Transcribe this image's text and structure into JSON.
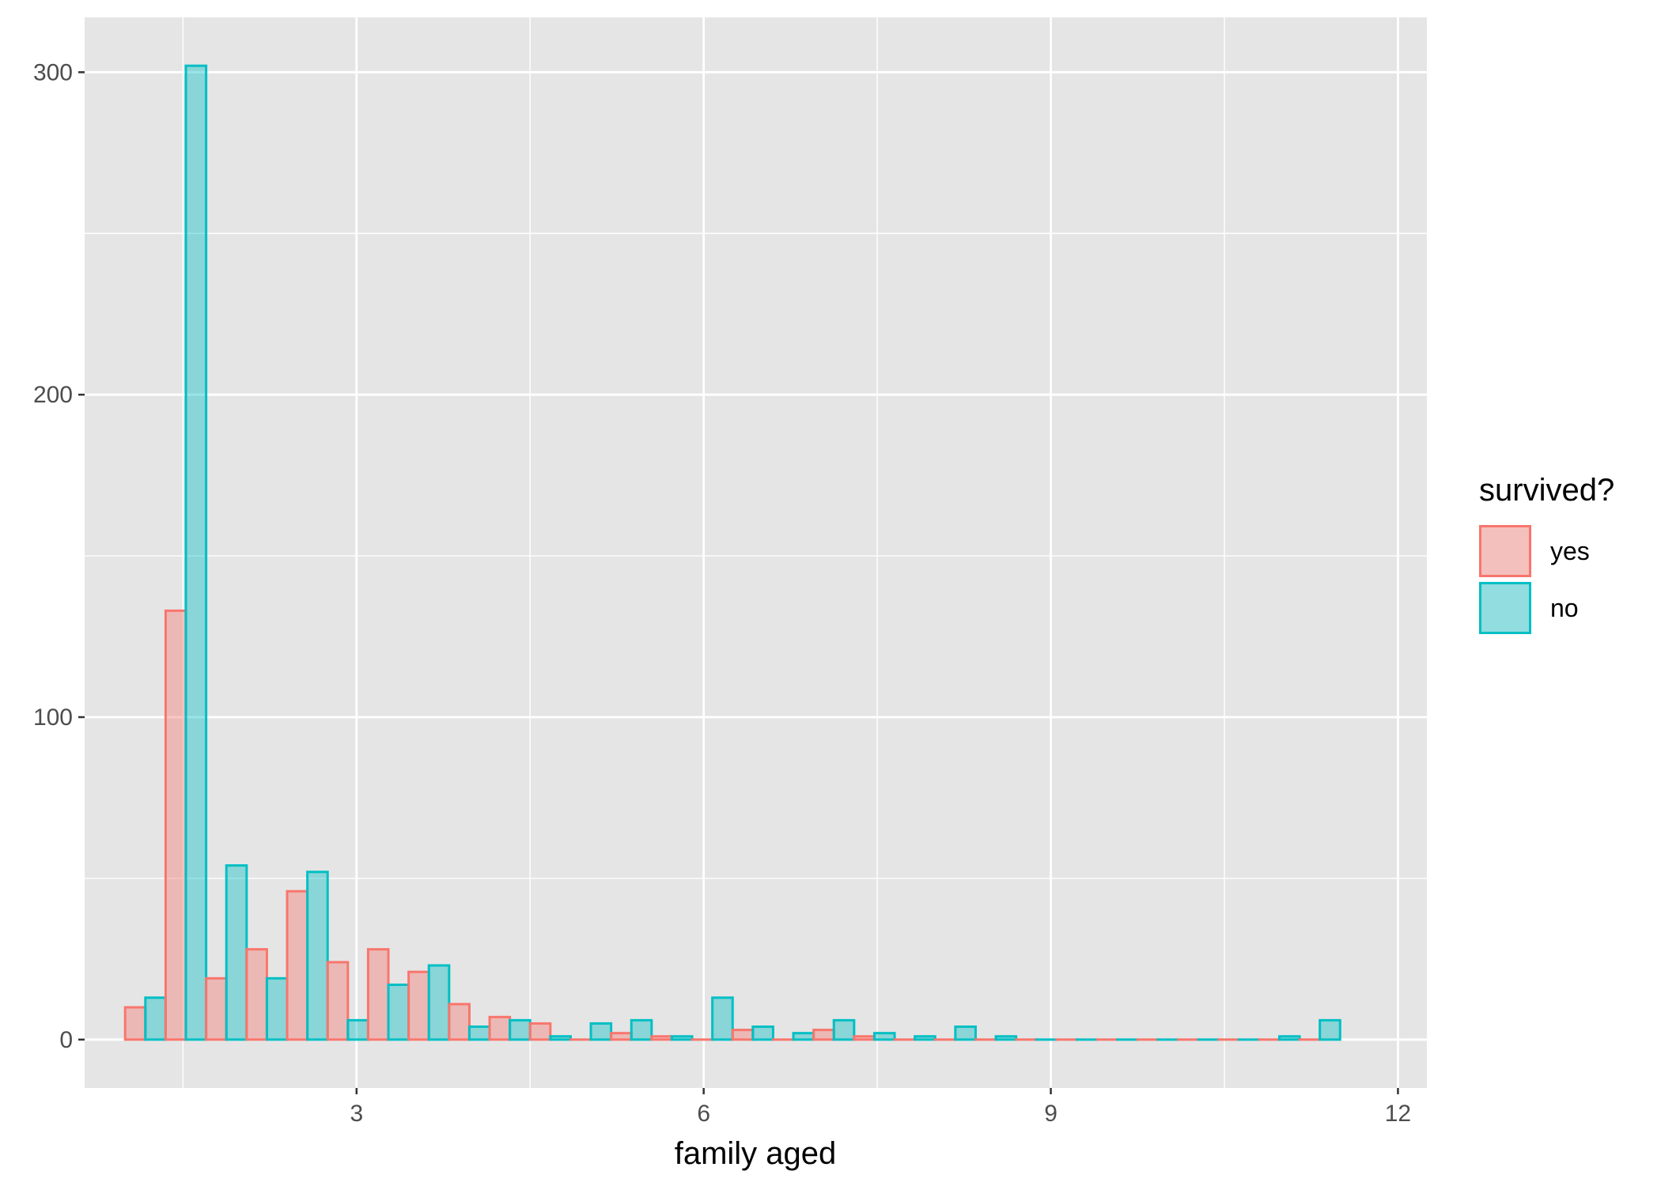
{
  "chart_data": {
    "type": "bar",
    "subtype": "dodged-histogram",
    "xlabel": "family aged",
    "ylabel": "",
    "xlim": [
      0.65,
      12.25
    ],
    "ylim": [
      -15,
      317
    ],
    "x_ticks": [
      3,
      6,
      9,
      12
    ],
    "y_ticks": [
      0,
      100,
      200,
      300
    ],
    "grid": true,
    "legend": {
      "title": "survived?",
      "position": "right"
    },
    "bin_width": 0.35,
    "x": [
      1.175,
      1.525,
      1.875,
      2.225,
      2.575,
      2.925,
      3.275,
      3.625,
      3.975,
      4.325,
      4.675,
      5.025,
      5.375,
      5.725,
      6.075,
      6.425,
      6.775,
      7.125,
      7.475,
      7.825,
      8.175,
      8.525,
      8.875,
      9.225,
      9.575,
      9.925,
      10.275,
      10.625,
      10.975,
      11.325
    ],
    "series": [
      {
        "name": "yes",
        "color": "#F8766D",
        "values": [
          10,
          133,
          19,
          28,
          46,
          24,
          28,
          21,
          11,
          7,
          5,
          0,
          2,
          1,
          0,
          3,
          0,
          3,
          1,
          0,
          0,
          0,
          0,
          0,
          0,
          0,
          0,
          0,
          0,
          0
        ]
      },
      {
        "name": "no",
        "color": "#00BFC4",
        "values": [
          13,
          302,
          54,
          19,
          52,
          6,
          17,
          23,
          4,
          6,
          1,
          5,
          6,
          1,
          13,
          4,
          2,
          6,
          2,
          1,
          4,
          1,
          0,
          0,
          0,
          0,
          0,
          0,
          1,
          6
        ]
      }
    ]
  }
}
